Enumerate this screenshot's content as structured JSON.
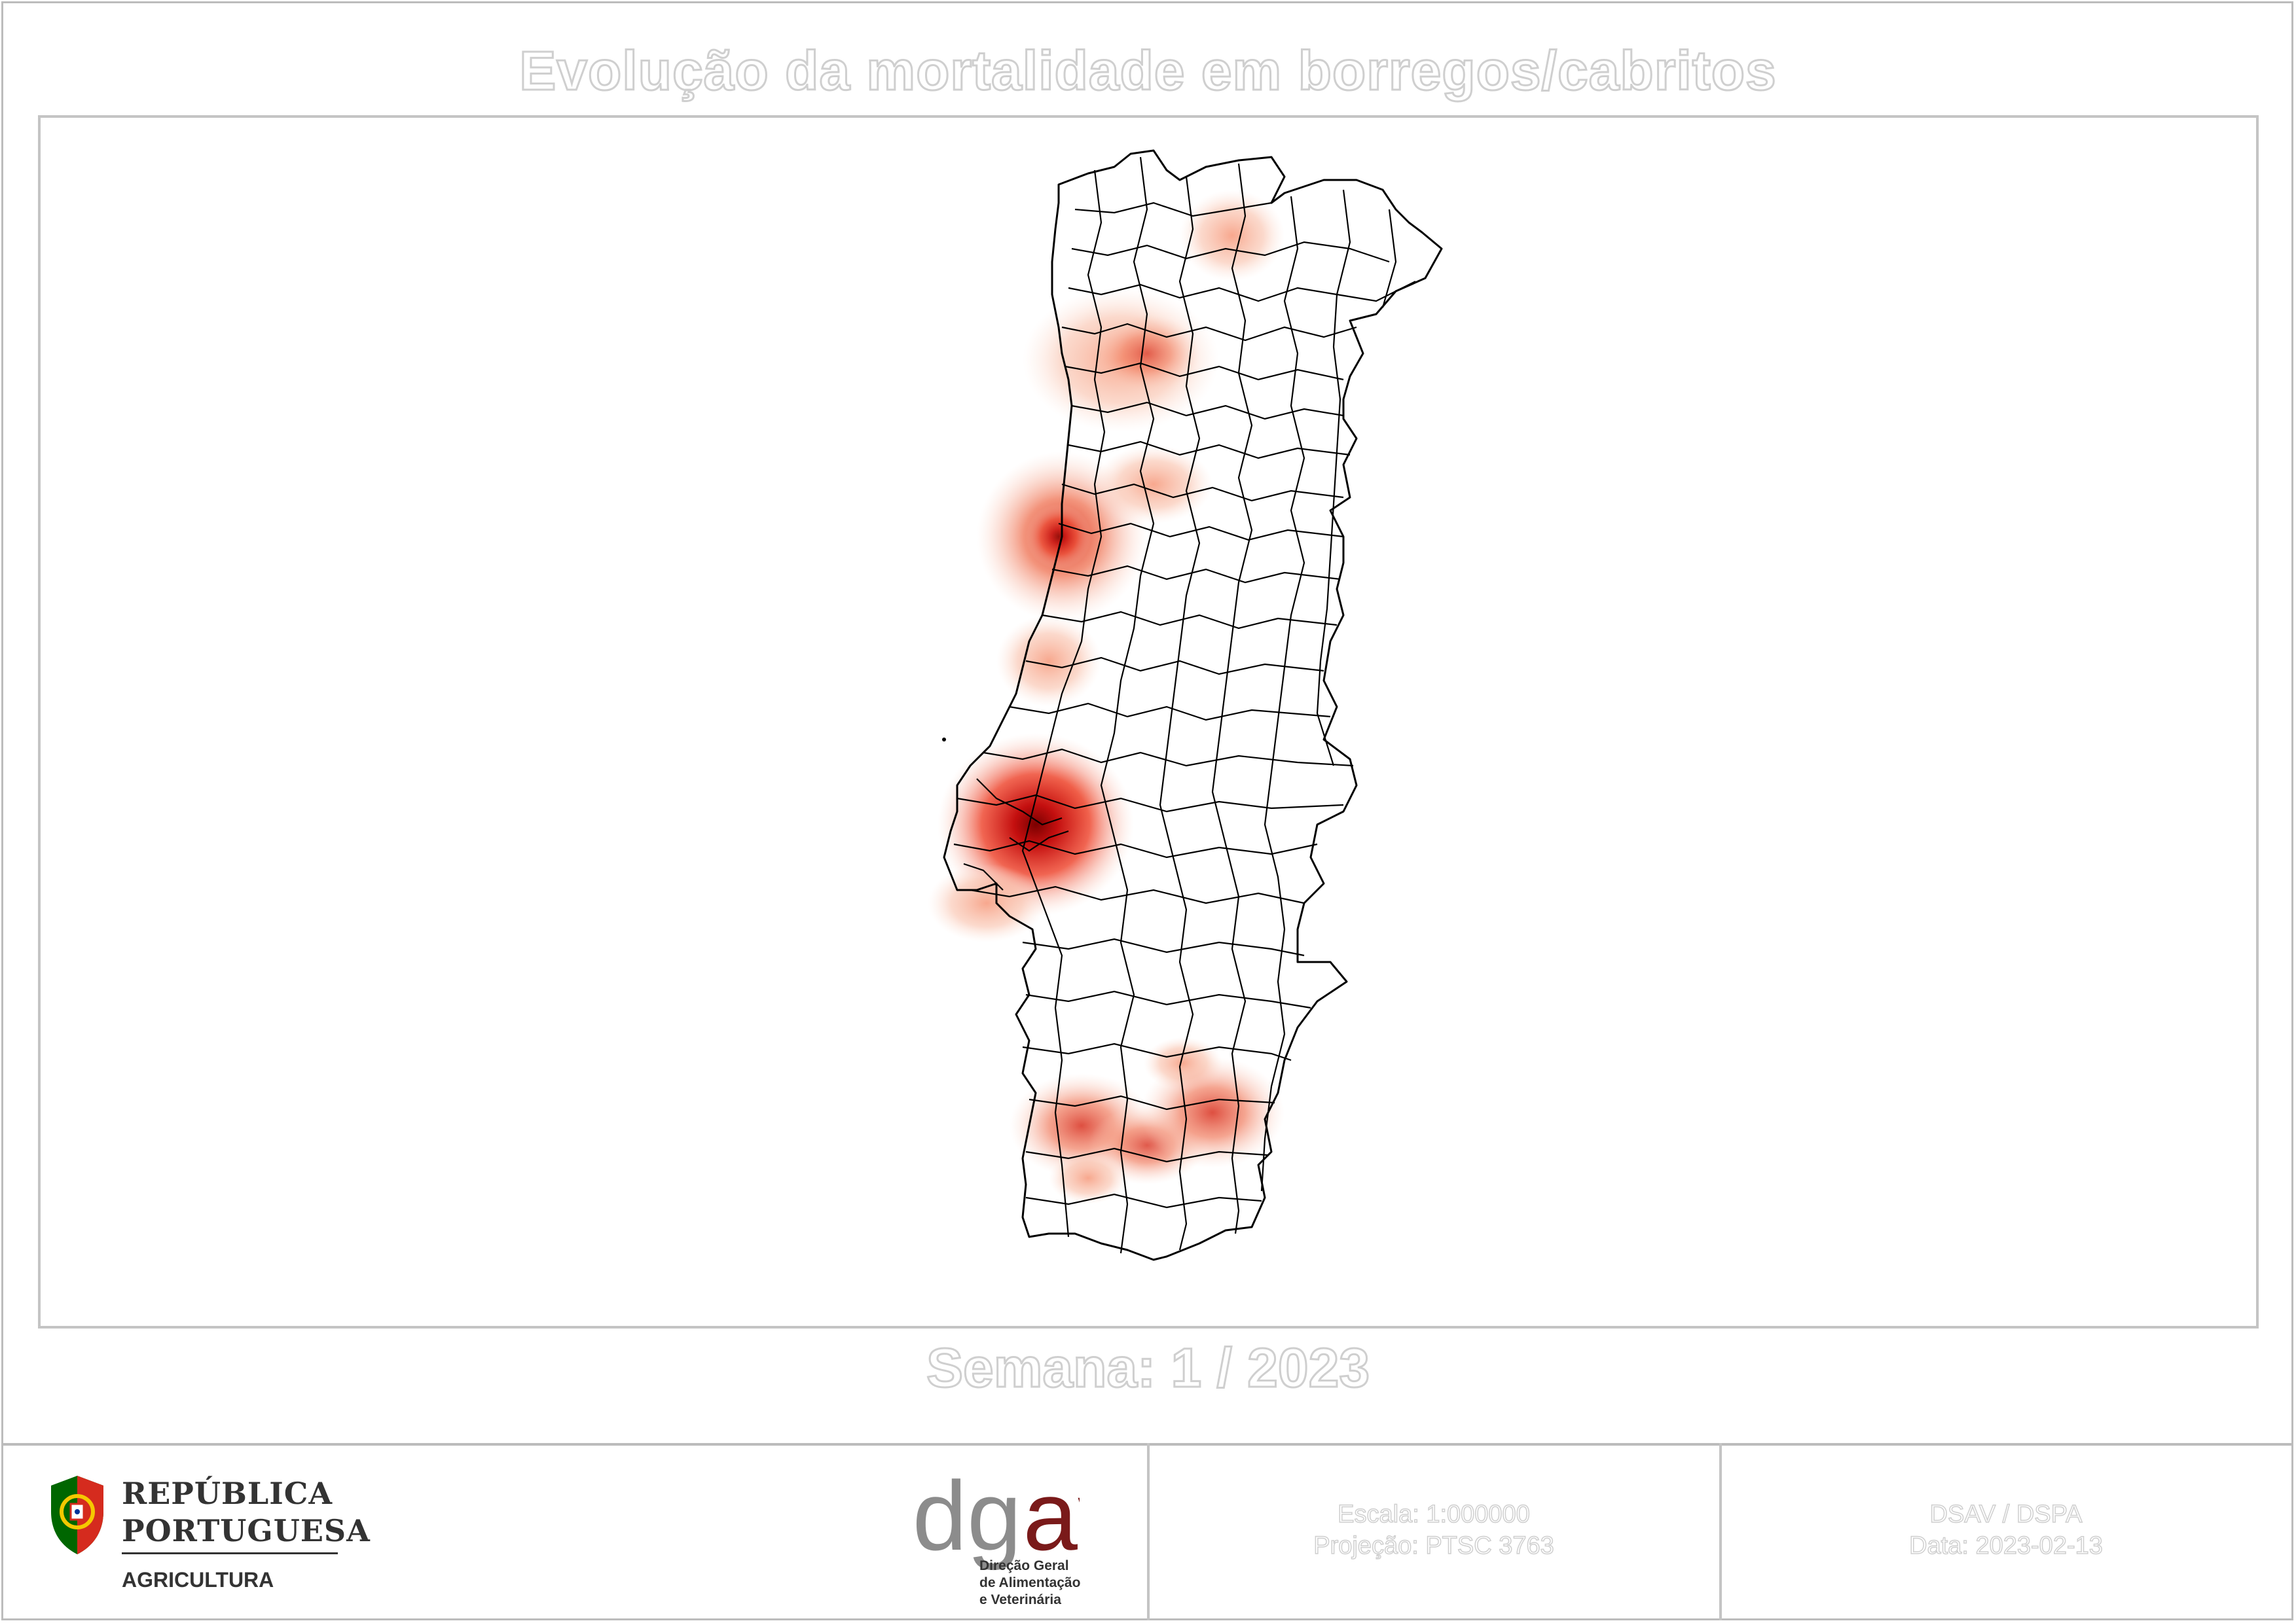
{
  "title": "Evolução da mortalidade em borregos/cabritos",
  "week_label": "Semana: 1 / 2023",
  "map": {
    "region": "Portugal (continental) — concelhos",
    "heat_color_low": "#f6c9b6",
    "heat_color_high": "#b30000",
    "hotspots_level": [
      "low",
      "medium",
      "high"
    ]
  },
  "footer": {
    "republica_line1": "REPÚBLICA",
    "republica_line2": "PORTUGUESA",
    "republica_line3": "AGRICULTURA",
    "dgav_mark": "dgav",
    "dgav_d": "dg",
    "dgav_av": "av",
    "dgav_line1": "Direção Geral",
    "dgav_line2": "de Alimentação",
    "dgav_line3": "e Veterinária",
    "scale_text": "Escala: 1:000000",
    "projection_text": "Projeção: PTSC 3763",
    "dsav_text": "DSAV / DSPA",
    "date_text": "Data: 2023-02-13",
    "brand_green": "#006600",
    "brand_red": "#d52b1e",
    "dgav_grey": "#8c8c8c",
    "dgav_red": "#7a1a1a"
  }
}
